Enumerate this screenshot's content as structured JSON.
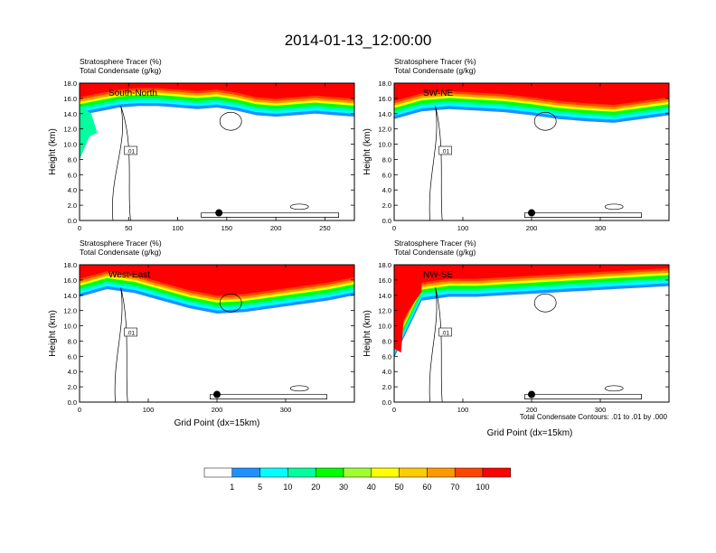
{
  "title": "2014-01-13_12:00:00",
  "panel_header_line1": "Stratosphere Tracer   (%)",
  "panel_header_line2": "Total Condensate   (g/kg)",
  "ylabel": "Height (km)",
  "xlabel": "Grid Point (dx=15km)",
  "footnote": "Total Condensate Contours: .01 to .01 by .000",
  "contour_label": ".01",
  "colors": {
    "white": "#ffffff",
    "c1": "#1e90ff",
    "c5": "#00ffff",
    "c10": "#00ff9f",
    "c20": "#00ff00",
    "c30": "#9fff2f",
    "c40": "#ffff00",
    "c50": "#ffcc00",
    "c60": "#ff9900",
    "c70": "#ff4500",
    "c100": "#ff0000"
  },
  "colorbar": {
    "labels": [
      "1",
      "5",
      "10",
      "20",
      "30",
      "40",
      "50",
      "60",
      "70",
      "100"
    ]
  },
  "chart_data": [
    {
      "type": "heatmap",
      "name": "South-North",
      "xlim": [
        0,
        280
      ],
      "ylim": [
        0,
        18
      ],
      "xticks": [
        "0",
        "50",
        "100",
        "150",
        "200",
        "250"
      ],
      "yticks": [
        "0.0",
        "2.0",
        "4.0",
        "6.0",
        "8.0",
        "10.0",
        "12.0",
        "14.0",
        "16.0",
        "18.0"
      ],
      "marker_x": 142,
      "marker_y": 1.0,
      "tropopause_x": [
        0,
        20,
        40,
        60,
        80,
        100,
        120,
        140,
        160,
        180,
        200,
        220,
        240,
        260,
        280
      ],
      "tropopause_km": [
        15.0,
        15.5,
        16.0,
        16.2,
        16.2,
        16.0,
        15.8,
        16.0,
        15.6,
        15.0,
        14.8,
        15.0,
        15.2,
        15.0,
        14.8
      ]
    },
    {
      "type": "heatmap",
      "name": "SW-NE",
      "xlim": [
        0,
        400
      ],
      "ylim": [
        0,
        18
      ],
      "xticks": [
        "0",
        "100",
        "200",
        "300"
      ],
      "yticks": [
        "0.0",
        "2.0",
        "4.0",
        "6.0",
        "8.0",
        "10.0",
        "12.0",
        "14.0",
        "16.0",
        "18.0"
      ],
      "marker_x": 200,
      "marker_y": 1.0,
      "tropopause_x": [
        0,
        40,
        80,
        120,
        160,
        200,
        240,
        280,
        320,
        360,
        400
      ],
      "tropopause_km": [
        14.5,
        15.5,
        15.8,
        15.6,
        15.4,
        15.0,
        14.5,
        14.2,
        14.0,
        14.5,
        15.0
      ]
    },
    {
      "type": "heatmap",
      "name": "West-East",
      "xlim": [
        0,
        400
      ],
      "ylim": [
        0,
        18
      ],
      "xticks": [
        "0",
        "100",
        "200",
        "300"
      ],
      "yticks": [
        "0.0",
        "2.0",
        "4.0",
        "6.0",
        "8.0",
        "10.0",
        "12.0",
        "14.0",
        "16.0",
        "18.0"
      ],
      "marker_x": 200,
      "marker_y": 1.0,
      "tropopause_x": [
        0,
        40,
        80,
        120,
        160,
        200,
        240,
        280,
        320,
        360,
        400
      ],
      "tropopause_km": [
        15.0,
        16.0,
        15.5,
        14.5,
        13.5,
        12.8,
        13.0,
        13.5,
        14.0,
        14.5,
        15.2
      ]
    },
    {
      "type": "heatmap",
      "name": "NW-SE",
      "xlim": [
        0,
        400
      ],
      "ylim": [
        0,
        18
      ],
      "xticks": [
        "0",
        "100",
        "200",
        "300"
      ],
      "yticks": [
        "0.0",
        "2.0",
        "4.0",
        "6.0",
        "8.0",
        "10.0",
        "12.0",
        "14.0",
        "16.0",
        "18.0"
      ],
      "marker_x": 200,
      "marker_y": 1.0,
      "tropopause_x": [
        0,
        40,
        80,
        120,
        160,
        200,
        240,
        280,
        320,
        360,
        400
      ],
      "tropopause_km": [
        7.0,
        14.5,
        15.0,
        15.0,
        15.2,
        15.4,
        15.6,
        15.8,
        16.0,
        16.2,
        16.4
      ]
    }
  ]
}
